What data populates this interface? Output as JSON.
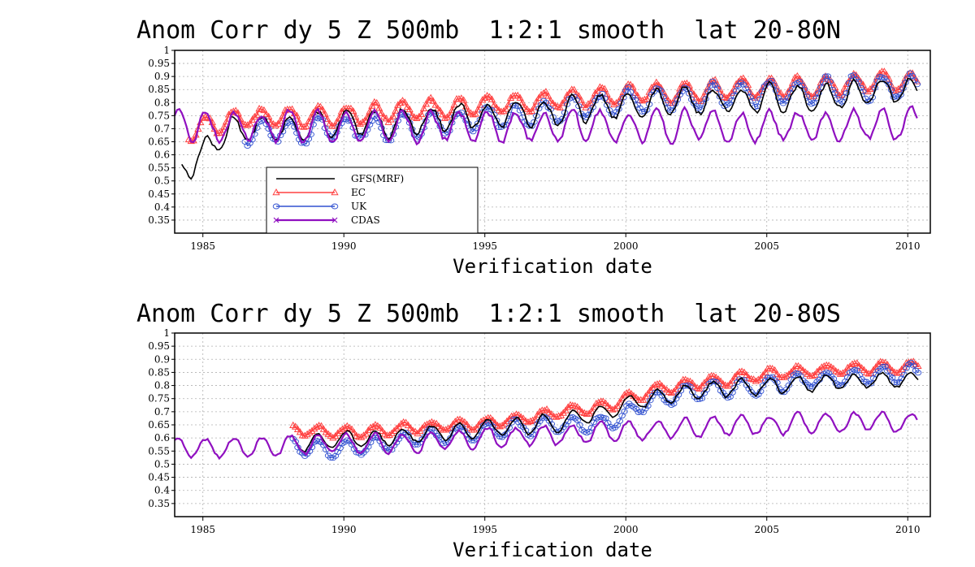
{
  "chart_data": [
    {
      "type": "line",
      "title": "Anom Corr dy 5 Z 500mb  1:2:1 smooth  lat 20-80N",
      "xlabel": "Verification date",
      "ylabel": "",
      "xlim": [
        1984.0,
        2010.8
      ],
      "ylim": [
        0.3,
        1.0
      ],
      "yticks": [
        1,
        0.95,
        0.9,
        0.85,
        0.8,
        0.75,
        0.7,
        0.65,
        0.6,
        0.55,
        0.5,
        0.45,
        0.4,
        0.35
      ],
      "xticks": [
        1985,
        1990,
        1995,
        2000,
        2005,
        2010
      ],
      "grid": true,
      "legend_position": "lower-left",
      "series": [
        {
          "name": "GFS(MRF)",
          "color": "#000000",
          "marker": "none",
          "start": 1984.25,
          "end": 2010.4,
          "base": [
            0.54,
            0.7,
            0.7,
            0.715,
            0.72,
            0.735,
            0.75,
            0.76,
            0.77,
            0.79,
            0.8,
            0.81,
            0.815,
            0.82,
            0.84,
            0.85
          ],
          "amp": 0.05
        },
        {
          "name": "EC",
          "color": "#ff4040",
          "marker": "triangle",
          "start": 1984.5,
          "end": 2010.4,
          "base": [
            0.69,
            0.74,
            0.745,
            0.75,
            0.76,
            0.775,
            0.79,
            0.8,
            0.82,
            0.835,
            0.84,
            0.85,
            0.855,
            0.865,
            0.875,
            0.88
          ],
          "amp": 0.035
        },
        {
          "name": "UK",
          "color": "#3050d0",
          "marker": "circle",
          "start": 1986.5,
          "end": 2010.4,
          "base": [
            0.69,
            0.69,
            0.7,
            0.705,
            0.72,
            0.73,
            0.75,
            0.77,
            0.79,
            0.81,
            0.82,
            0.83,
            0.84,
            0.85,
            0.86,
            0.87
          ],
          "amp": 0.045
        },
        {
          "name": "CDAS",
          "color": "#9010c0",
          "marker": "cross",
          "start": 1984.0,
          "end": 2010.4,
          "base": [
            0.71,
            0.71,
            0.71,
            0.71,
            0.71,
            0.71,
            0.71,
            0.71,
            0.71,
            0.71,
            0.71,
            0.71,
            0.71,
            0.71,
            0.71,
            0.72
          ],
          "amp": 0.055
        }
      ]
    },
    {
      "type": "line",
      "title": "Anom Corr dy 5 Z 500mb  1:2:1 smooth  lat 20-80S",
      "xlabel": "Verification date",
      "ylabel": "",
      "xlim": [
        1984.0,
        2010.8
      ],
      "ylim": [
        0.3,
        1.0
      ],
      "yticks": [
        1,
        0.95,
        0.9,
        0.85,
        0.8,
        0.75,
        0.7,
        0.65,
        0.6,
        0.55,
        0.5,
        0.45,
        0.4,
        0.35
      ],
      "xticks": [
        1985,
        1990,
        1995,
        2000,
        2005,
        2010
      ],
      "grid": true,
      "series": [
        {
          "name": "GFS(MRF)",
          "color": "#000000",
          "marker": "none",
          "start": 1988.2,
          "end": 2010.4,
          "base": [
            0.58,
            0.59,
            0.6,
            0.62,
            0.63,
            0.645,
            0.66,
            0.7,
            0.75,
            0.78,
            0.79,
            0.8,
            0.81,
            0.82,
            0.825
          ],
          "amp": 0.03
        },
        {
          "name": "EC",
          "color": "#ff4040",
          "marker": "triangle",
          "start": 1988.2,
          "end": 2010.4,
          "base": [
            0.63,
            0.62,
            0.63,
            0.64,
            0.65,
            0.67,
            0.7,
            0.72,
            0.78,
            0.81,
            0.83,
            0.85,
            0.86,
            0.87,
            0.875
          ],
          "amp": 0.02
        },
        {
          "name": "UK",
          "color": "#3050d0",
          "marker": "circle",
          "start": 1988.2,
          "end": 2010.4,
          "base": [
            0.57,
            0.55,
            0.58,
            0.6,
            0.62,
            0.64,
            0.65,
            0.66,
            0.74,
            0.78,
            0.79,
            0.81,
            0.82,
            0.84,
            0.85
          ],
          "amp": 0.03
        },
        {
          "name": "CDAS",
          "color": "#9010c0",
          "marker": "cross",
          "start": 1984.0,
          "end": 2010.4,
          "base": [
            0.56,
            0.565,
            0.57,
            0.575,
            0.58,
            0.59,
            0.6,
            0.61,
            0.62,
            0.63,
            0.64,
            0.65,
            0.655,
            0.66,
            0.665
          ],
          "amp": 0.035
        }
      ]
    }
  ]
}
